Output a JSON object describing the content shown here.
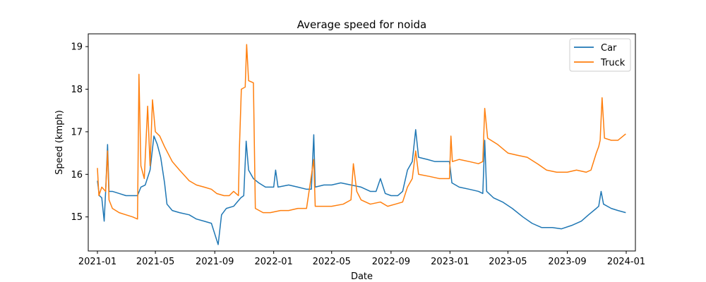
{
  "chart_data": {
    "type": "line",
    "title": "Average speed for noida",
    "xlabel": "Date",
    "ylabel": "Speed (kmph)",
    "x_ticks": [
      "2021-01",
      "2021-05",
      "2021-09",
      "2022-01",
      "2022-05",
      "2022-09",
      "2023-01",
      "2023-05",
      "2023-09",
      "2024-01"
    ],
    "y_ticks": [
      15,
      16,
      17,
      18,
      19
    ],
    "xlim": [
      "2020-12-13",
      "2024-01-20"
    ],
    "ylim": [
      14.2,
      19.3
    ],
    "legend": {
      "position": "top-right",
      "entries": [
        "Car",
        "Truck"
      ]
    },
    "series": [
      {
        "name": "Car",
        "color": "#1f77b4",
        "points": [
          [
            "2021-01-01",
            15.85
          ],
          [
            "2021-01-05",
            15.5
          ],
          [
            "2021-01-10",
            15.45
          ],
          [
            "2021-01-15",
            14.9
          ],
          [
            "2021-01-18",
            15.6
          ],
          [
            "2021-01-22",
            16.7
          ],
          [
            "2021-01-25",
            15.6
          ],
          [
            "2021-02-01",
            15.6
          ],
          [
            "2021-02-15",
            15.55
          ],
          [
            "2021-03-01",
            15.5
          ],
          [
            "2021-03-15",
            15.5
          ],
          [
            "2021-03-25",
            15.5
          ],
          [
            "2021-04-01",
            15.7
          ],
          [
            "2021-04-10",
            15.75
          ],
          [
            "2021-04-20",
            16.1
          ],
          [
            "2021-04-28",
            16.9
          ],
          [
            "2021-05-05",
            16.7
          ],
          [
            "2021-05-12",
            16.4
          ],
          [
            "2021-05-20",
            15.8
          ],
          [
            "2021-05-25",
            15.3
          ],
          [
            "2021-06-05",
            15.15
          ],
          [
            "2021-06-20",
            15.1
          ],
          [
            "2021-07-10",
            15.05
          ],
          [
            "2021-07-25",
            14.95
          ],
          [
            "2021-08-10",
            14.9
          ],
          [
            "2021-08-25",
            14.85
          ],
          [
            "2021-09-08",
            14.35
          ],
          [
            "2021-09-15",
            15.05
          ],
          [
            "2021-09-25",
            15.2
          ],
          [
            "2021-10-10",
            15.25
          ],
          [
            "2021-10-25",
            15.45
          ],
          [
            "2021-10-31",
            15.5
          ],
          [
            "2021-11-05",
            16.78
          ],
          [
            "2021-11-10",
            16.1
          ],
          [
            "2021-11-20",
            15.9
          ],
          [
            "2021-12-01",
            15.8
          ],
          [
            "2021-12-15",
            15.7
          ],
          [
            "2022-01-01",
            15.7
          ],
          [
            "2022-01-05",
            16.1
          ],
          [
            "2022-01-10",
            15.7
          ],
          [
            "2022-02-01",
            15.75
          ],
          [
            "2022-02-20",
            15.7
          ],
          [
            "2022-03-10",
            15.65
          ],
          [
            "2022-03-20",
            15.65
          ],
          [
            "2022-03-25",
            16.93
          ],
          [
            "2022-03-28",
            15.7
          ],
          [
            "2022-04-15",
            15.75
          ],
          [
            "2022-05-01",
            15.75
          ],
          [
            "2022-05-20",
            15.8
          ],
          [
            "2022-06-10",
            15.75
          ],
          [
            "2022-07-01",
            15.7
          ],
          [
            "2022-07-20",
            15.6
          ],
          [
            "2022-08-01",
            15.6
          ],
          [
            "2022-08-10",
            15.9
          ],
          [
            "2022-08-20",
            15.55
          ],
          [
            "2022-09-01",
            15.5
          ],
          [
            "2022-09-15",
            15.5
          ],
          [
            "2022-09-25",
            15.6
          ],
          [
            "2022-10-05",
            16.1
          ],
          [
            "2022-10-15",
            16.3
          ],
          [
            "2022-10-22",
            17.05
          ],
          [
            "2022-10-28",
            16.4
          ],
          [
            "2022-11-15",
            16.35
          ],
          [
            "2022-12-01",
            16.3
          ],
          [
            "2022-12-15",
            16.3
          ],
          [
            "2022-12-31",
            16.3
          ],
          [
            "2023-01-05",
            15.8
          ],
          [
            "2023-01-20",
            15.7
          ],
          [
            "2023-02-10",
            15.65
          ],
          [
            "2023-03-01",
            15.6
          ],
          [
            "2023-03-10",
            15.55
          ],
          [
            "2023-03-14",
            16.8
          ],
          [
            "2023-03-18",
            15.6
          ],
          [
            "2023-04-01",
            15.45
          ],
          [
            "2023-04-20",
            15.35
          ],
          [
            "2023-05-10",
            15.2
          ],
          [
            "2023-06-01",
            15.0
          ],
          [
            "2023-06-20",
            14.85
          ],
          [
            "2023-07-10",
            14.75
          ],
          [
            "2023-08-01",
            14.75
          ],
          [
            "2023-08-20",
            14.72
          ],
          [
            "2023-09-10",
            14.8
          ],
          [
            "2023-09-30",
            14.9
          ],
          [
            "2023-10-15",
            15.05
          ],
          [
            "2023-10-31",
            15.2
          ],
          [
            "2023-11-05",
            15.25
          ],
          [
            "2023-11-10",
            15.6
          ],
          [
            "2023-11-15",
            15.3
          ],
          [
            "2023-12-01",
            15.2
          ],
          [
            "2023-12-15",
            15.15
          ],
          [
            "2023-12-31",
            15.1
          ]
        ]
      },
      {
        "name": "Truck",
        "color": "#ff7f0e",
        "points": [
          [
            "2021-01-01",
            16.15
          ],
          [
            "2021-01-04",
            15.5
          ],
          [
            "2021-01-10",
            15.7
          ],
          [
            "2021-01-18",
            15.6
          ],
          [
            "2021-01-22",
            16.55
          ],
          [
            "2021-01-25",
            15.4
          ],
          [
            "2021-02-01",
            15.2
          ],
          [
            "2021-02-15",
            15.1
          ],
          [
            "2021-03-01",
            15.05
          ],
          [
            "2021-03-15",
            15.0
          ],
          [
            "2021-03-25",
            14.95
          ],
          [
            "2021-03-28",
            18.35
          ],
          [
            "2021-04-01",
            16.2
          ],
          [
            "2021-04-08",
            15.9
          ],
          [
            "2021-04-15",
            17.6
          ],
          [
            "2021-04-20",
            16.2
          ],
          [
            "2021-04-25",
            17.75
          ],
          [
            "2021-05-01",
            17.0
          ],
          [
            "2021-05-10",
            16.9
          ],
          [
            "2021-05-20",
            16.65
          ],
          [
            "2021-06-05",
            16.3
          ],
          [
            "2021-06-20",
            16.1
          ],
          [
            "2021-07-10",
            15.85
          ],
          [
            "2021-07-25",
            15.75
          ],
          [
            "2021-08-10",
            15.7
          ],
          [
            "2021-08-25",
            15.65
          ],
          [
            "2021-09-05",
            15.55
          ],
          [
            "2021-09-20",
            15.5
          ],
          [
            "2021-10-01",
            15.5
          ],
          [
            "2021-10-10",
            15.6
          ],
          [
            "2021-10-20",
            15.5
          ],
          [
            "2021-10-22",
            16.6
          ],
          [
            "2021-10-26",
            18.0
          ],
          [
            "2021-11-03",
            18.05
          ],
          [
            "2021-11-06",
            19.05
          ],
          [
            "2021-11-10",
            18.2
          ],
          [
            "2021-11-20",
            18.15
          ],
          [
            "2021-11-24",
            15.2
          ],
          [
            "2021-12-10",
            15.1
          ],
          [
            "2021-12-25",
            15.1
          ],
          [
            "2022-01-15",
            15.15
          ],
          [
            "2022-02-01",
            15.15
          ],
          [
            "2022-02-20",
            15.2
          ],
          [
            "2022-03-10",
            15.2
          ],
          [
            "2022-03-25",
            16.35
          ],
          [
            "2022-03-28",
            15.25
          ],
          [
            "2022-04-15",
            15.25
          ],
          [
            "2022-05-01",
            15.25
          ],
          [
            "2022-05-25",
            15.3
          ],
          [
            "2022-06-10",
            15.4
          ],
          [
            "2022-06-15",
            16.25
          ],
          [
            "2022-06-22",
            15.6
          ],
          [
            "2022-07-01",
            15.4
          ],
          [
            "2022-07-20",
            15.3
          ],
          [
            "2022-08-10",
            15.35
          ],
          [
            "2022-08-25",
            15.25
          ],
          [
            "2022-09-10",
            15.3
          ],
          [
            "2022-09-25",
            15.35
          ],
          [
            "2022-10-05",
            15.7
          ],
          [
            "2022-10-15",
            15.9
          ],
          [
            "2022-10-22",
            16.55
          ],
          [
            "2022-10-28",
            16.0
          ],
          [
            "2022-11-20",
            15.95
          ],
          [
            "2022-12-10",
            15.9
          ],
          [
            "2022-12-31",
            15.9
          ],
          [
            "2023-01-03",
            16.9
          ],
          [
            "2023-01-06",
            16.3
          ],
          [
            "2023-01-20",
            16.35
          ],
          [
            "2023-02-10",
            16.3
          ],
          [
            "2023-03-01",
            16.25
          ],
          [
            "2023-03-10",
            16.3
          ],
          [
            "2023-03-14",
            17.55
          ],
          [
            "2023-03-20",
            16.85
          ],
          [
            "2023-04-10",
            16.7
          ],
          [
            "2023-05-01",
            16.5
          ],
          [
            "2023-05-20",
            16.45
          ],
          [
            "2023-06-10",
            16.4
          ],
          [
            "2023-07-01",
            16.25
          ],
          [
            "2023-07-20",
            16.1
          ],
          [
            "2023-08-10",
            16.05
          ],
          [
            "2023-09-01",
            16.05
          ],
          [
            "2023-09-20",
            16.1
          ],
          [
            "2023-10-10",
            16.05
          ],
          [
            "2023-10-20",
            16.1
          ],
          [
            "2023-10-31",
            16.5
          ],
          [
            "2023-11-05",
            16.65
          ],
          [
            "2023-11-08",
            16.8
          ],
          [
            "2023-11-12",
            17.8
          ],
          [
            "2023-11-17",
            16.85
          ],
          [
            "2023-12-01",
            16.8
          ],
          [
            "2023-12-15",
            16.8
          ],
          [
            "2023-12-31",
            16.95
          ]
        ]
      }
    ]
  }
}
